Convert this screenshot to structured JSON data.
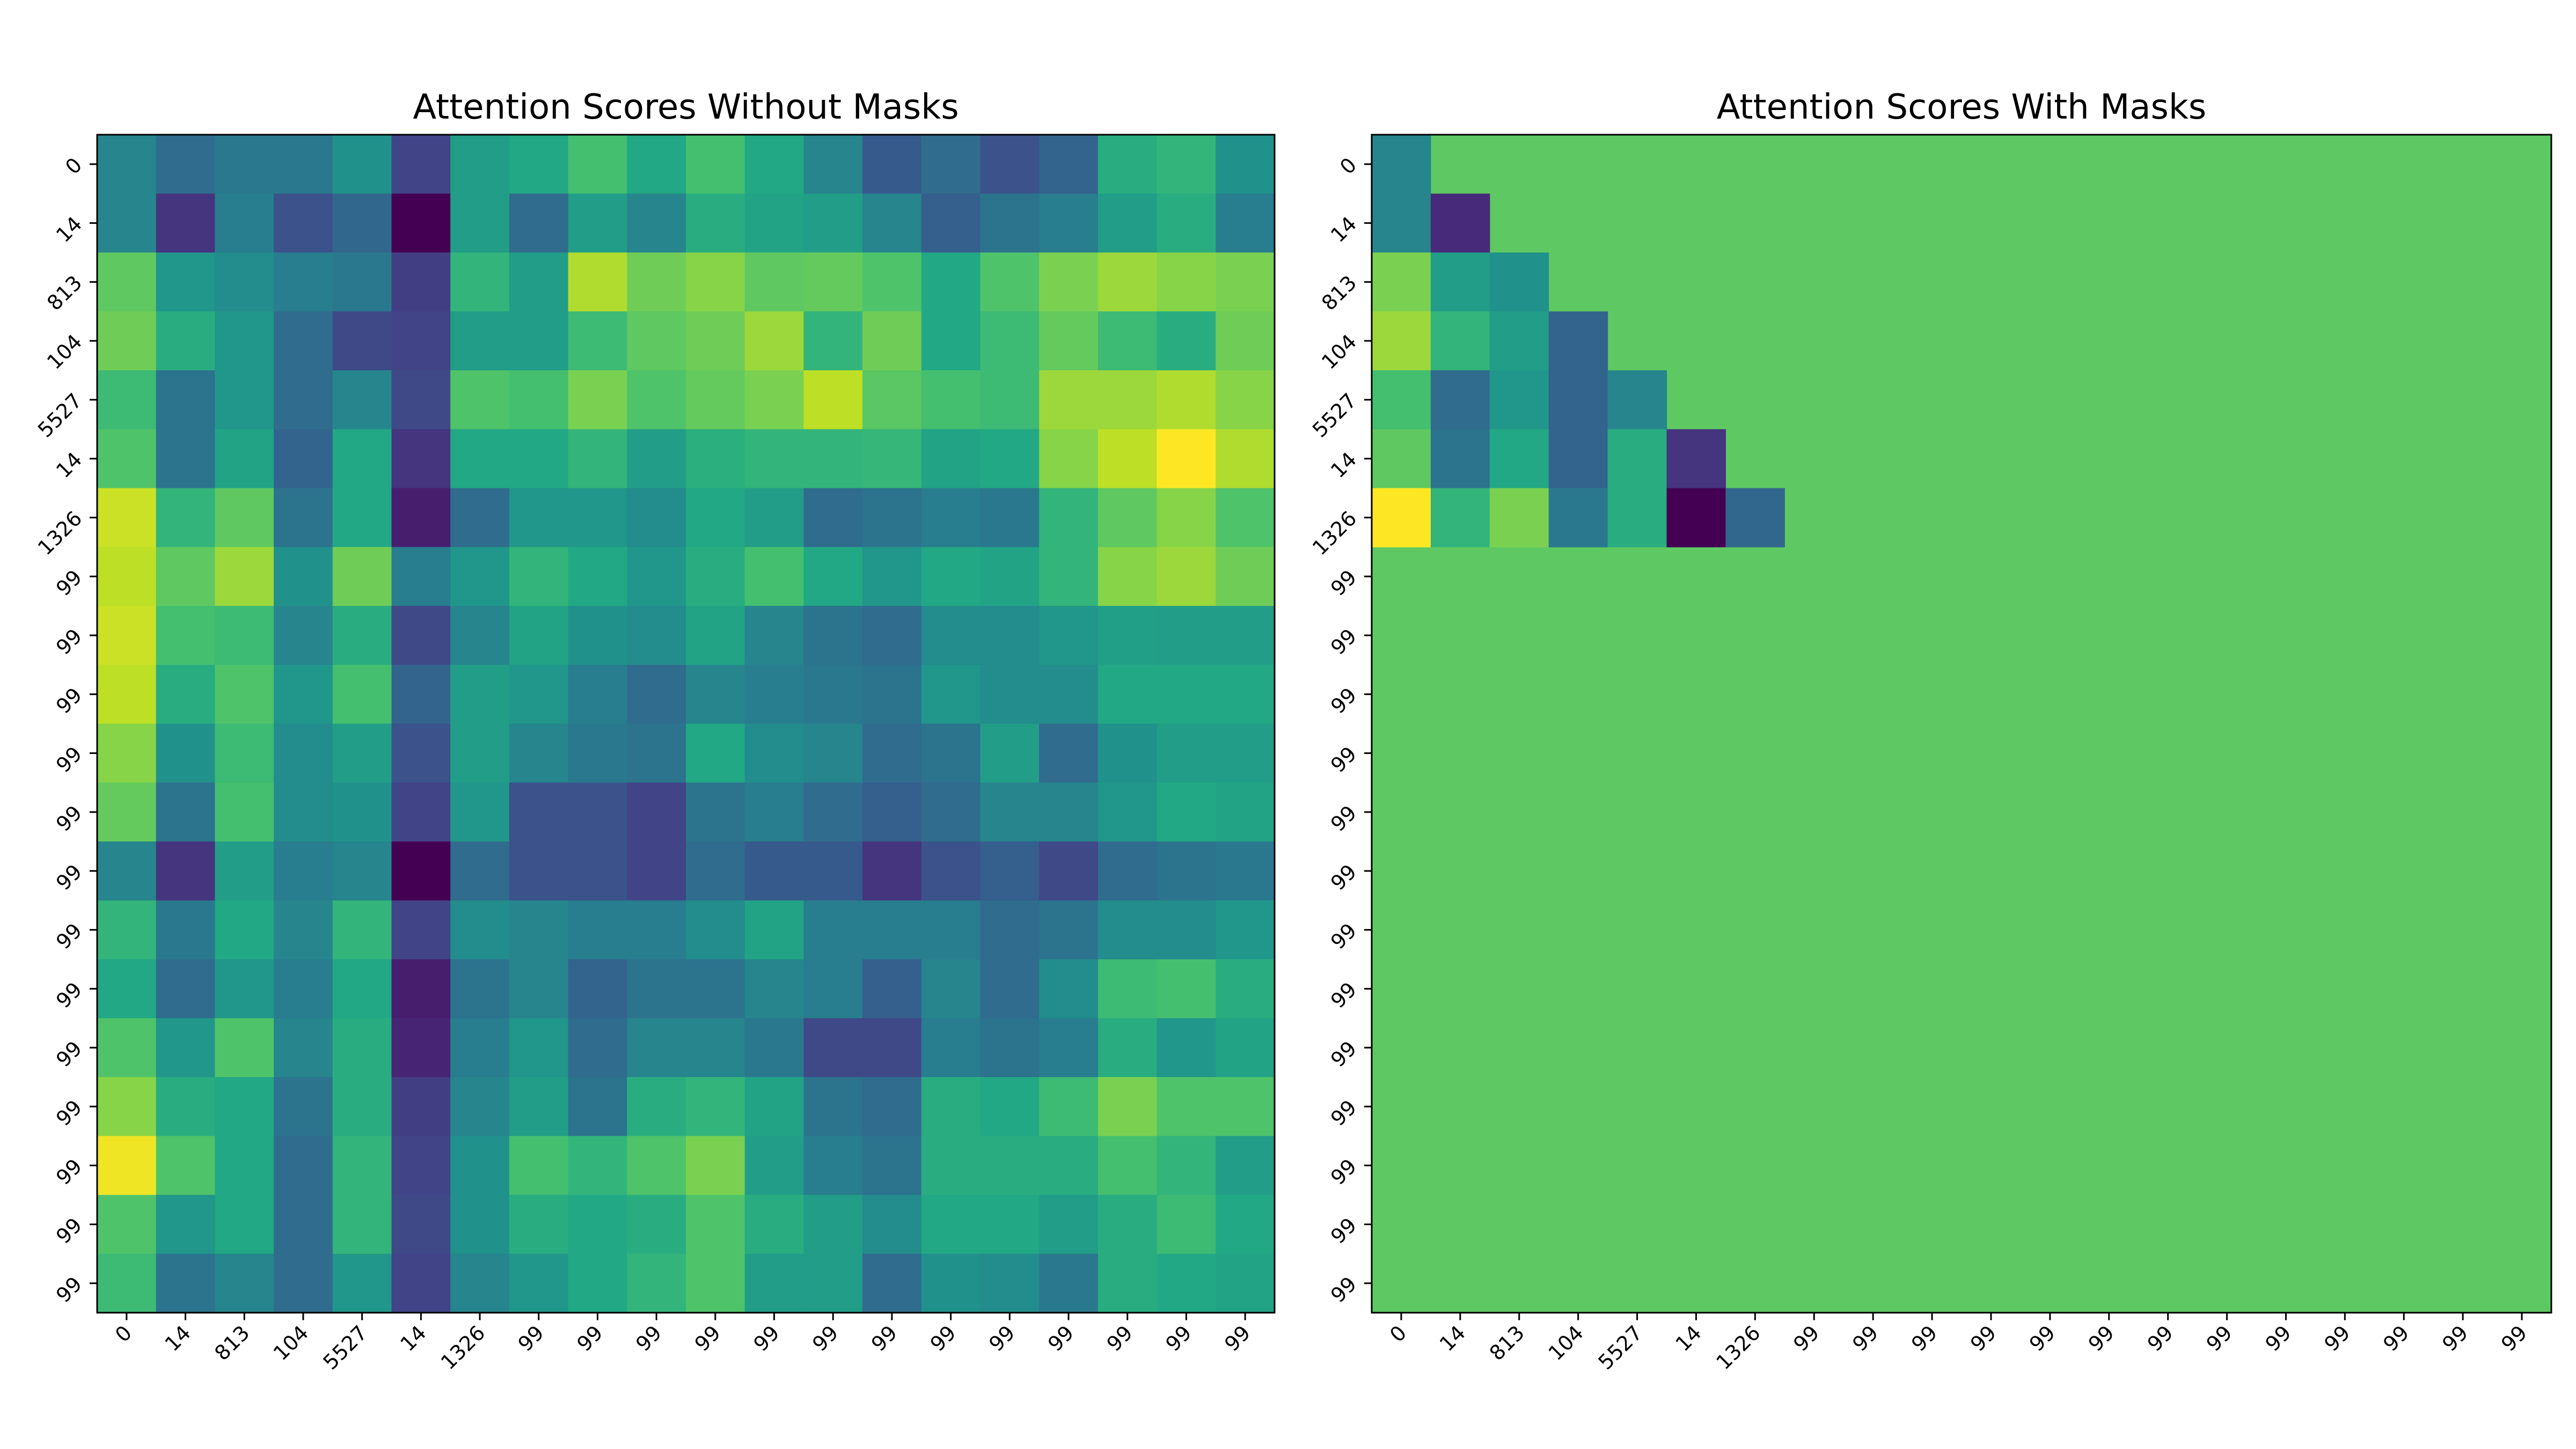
{
  "chart_data": [
    {
      "type": "heatmap",
      "title": "Attention Scores Without Masks",
      "colormap": "viridis",
      "categories": [
        "0",
        "14",
        "813",
        "104",
        "5527",
        "14",
        "1326",
        "99",
        "99",
        "99",
        "99",
        "99",
        "99",
        "99",
        "99",
        "99",
        "99",
        "99",
        "99",
        "99"
      ],
      "values": [
        [
          0.45,
          0.35,
          0.4,
          0.4,
          0.5,
          0.2,
          0.55,
          0.6,
          0.7,
          0.6,
          0.7,
          0.6,
          0.45,
          0.28,
          0.35,
          0.25,
          0.32,
          0.62,
          0.65,
          0.5
        ],
        [
          0.45,
          0.15,
          0.42,
          0.25,
          0.33,
          0.0,
          0.55,
          0.35,
          0.55,
          0.45,
          0.62,
          0.58,
          0.55,
          0.45,
          0.3,
          0.38,
          0.42,
          0.55,
          0.62,
          0.42
        ],
        [
          0.75,
          0.52,
          0.48,
          0.42,
          0.4,
          0.18,
          0.65,
          0.55,
          0.88,
          0.78,
          0.82,
          0.75,
          0.76,
          0.72,
          0.6,
          0.72,
          0.8,
          0.85,
          0.82,
          0.8
        ],
        [
          0.78,
          0.62,
          0.52,
          0.35,
          0.22,
          0.2,
          0.55,
          0.55,
          0.68,
          0.75,
          0.78,
          0.85,
          0.65,
          0.78,
          0.6,
          0.68,
          0.76,
          0.68,
          0.62,
          0.78
        ],
        [
          0.68,
          0.38,
          0.52,
          0.35,
          0.45,
          0.22,
          0.72,
          0.7,
          0.8,
          0.72,
          0.76,
          0.8,
          0.9,
          0.74,
          0.7,
          0.68,
          0.85,
          0.85,
          0.88,
          0.82
        ],
        [
          0.72,
          0.38,
          0.58,
          0.32,
          0.6,
          0.15,
          0.6,
          0.6,
          0.65,
          0.55,
          0.63,
          0.65,
          0.65,
          0.66,
          0.58,
          0.6,
          0.82,
          0.9,
          1.0,
          0.88
        ],
        [
          0.92,
          0.65,
          0.75,
          0.38,
          0.6,
          0.08,
          0.35,
          0.52,
          0.52,
          0.48,
          0.6,
          0.55,
          0.35,
          0.38,
          0.42,
          0.4,
          0.65,
          0.75,
          0.82,
          0.72
        ],
        [
          0.9,
          0.75,
          0.85,
          0.5,
          0.78,
          0.42,
          0.52,
          0.65,
          0.6,
          0.52,
          0.62,
          0.7,
          0.6,
          0.52,
          0.6,
          0.58,
          0.65,
          0.82,
          0.85,
          0.78
        ],
        [
          0.92,
          0.7,
          0.68,
          0.45,
          0.62,
          0.22,
          0.45,
          0.58,
          0.5,
          0.48,
          0.58,
          0.45,
          0.38,
          0.35,
          0.48,
          0.48,
          0.52,
          0.56,
          0.55,
          0.55
        ],
        [
          0.9,
          0.62,
          0.72,
          0.52,
          0.7,
          0.32,
          0.55,
          0.52,
          0.42,
          0.35,
          0.45,
          0.42,
          0.4,
          0.38,
          0.52,
          0.48,
          0.48,
          0.6,
          0.6,
          0.6
        ],
        [
          0.82,
          0.5,
          0.68,
          0.48,
          0.55,
          0.25,
          0.55,
          0.45,
          0.4,
          0.38,
          0.6,
          0.48,
          0.45,
          0.35,
          0.38,
          0.55,
          0.35,
          0.5,
          0.55,
          0.55
        ],
        [
          0.76,
          0.38,
          0.7,
          0.48,
          0.5,
          0.2,
          0.52,
          0.25,
          0.25,
          0.2,
          0.38,
          0.42,
          0.35,
          0.3,
          0.35,
          0.45,
          0.45,
          0.52,
          0.6,
          0.58
        ],
        [
          0.45,
          0.15,
          0.55,
          0.42,
          0.45,
          0.0,
          0.35,
          0.25,
          0.25,
          0.2,
          0.35,
          0.28,
          0.28,
          0.15,
          0.25,
          0.3,
          0.22,
          0.35,
          0.38,
          0.4
        ],
        [
          0.65,
          0.4,
          0.6,
          0.45,
          0.65,
          0.2,
          0.48,
          0.45,
          0.42,
          0.42,
          0.48,
          0.58,
          0.42,
          0.42,
          0.42,
          0.35,
          0.38,
          0.48,
          0.48,
          0.52
        ],
        [
          0.6,
          0.35,
          0.52,
          0.42,
          0.6,
          0.08,
          0.38,
          0.45,
          0.32,
          0.38,
          0.38,
          0.45,
          0.42,
          0.3,
          0.45,
          0.35,
          0.48,
          0.68,
          0.7,
          0.62
        ],
        [
          0.72,
          0.52,
          0.72,
          0.45,
          0.62,
          0.1,
          0.42,
          0.52,
          0.35,
          0.45,
          0.45,
          0.4,
          0.22,
          0.22,
          0.42,
          0.38,
          0.42,
          0.62,
          0.52,
          0.58
        ],
        [
          0.82,
          0.62,
          0.6,
          0.38,
          0.62,
          0.18,
          0.45,
          0.55,
          0.38,
          0.62,
          0.65,
          0.58,
          0.38,
          0.35,
          0.62,
          0.6,
          0.68,
          0.8,
          0.72,
          0.72
        ],
        [
          0.98,
          0.72,
          0.6,
          0.35,
          0.65,
          0.2,
          0.5,
          0.7,
          0.65,
          0.72,
          0.8,
          0.55,
          0.42,
          0.38,
          0.62,
          0.62,
          0.62,
          0.7,
          0.65,
          0.55
        ],
        [
          0.72,
          0.52,
          0.6,
          0.35,
          0.65,
          0.22,
          0.5,
          0.62,
          0.6,
          0.62,
          0.72,
          0.62,
          0.55,
          0.48,
          0.6,
          0.6,
          0.55,
          0.62,
          0.68,
          0.6
        ],
        [
          0.68,
          0.38,
          0.45,
          0.35,
          0.52,
          0.2,
          0.45,
          0.52,
          0.6,
          0.65,
          0.72,
          0.55,
          0.55,
          0.35,
          0.5,
          0.48,
          0.4,
          0.62,
          0.6,
          0.58
        ]
      ]
    },
    {
      "type": "heatmap",
      "title": "Attention Scores With Masks",
      "colormap": "viridis",
      "mask_color": "#5ec962",
      "categories": [
        "0",
        "14",
        "813",
        "104",
        "5527",
        "14",
        "1326",
        "99",
        "99",
        "99",
        "99",
        "99",
        "99",
        "99",
        "99",
        "99",
        "99",
        "99",
        "99",
        "99"
      ],
      "values": [
        [
          0.45,
          null,
          null,
          null,
          null,
          null,
          null,
          null,
          null,
          null,
          null,
          null,
          null,
          null,
          null,
          null,
          null,
          null,
          null,
          null
        ],
        [
          0.45,
          0.12,
          null,
          null,
          null,
          null,
          null,
          null,
          null,
          null,
          null,
          null,
          null,
          null,
          null,
          null,
          null,
          null,
          null,
          null
        ],
        [
          0.8,
          0.55,
          0.5,
          null,
          null,
          null,
          null,
          null,
          null,
          null,
          null,
          null,
          null,
          null,
          null,
          null,
          null,
          null,
          null,
          null
        ],
        [
          0.85,
          0.65,
          0.55,
          0.32,
          null,
          null,
          null,
          null,
          null,
          null,
          null,
          null,
          null,
          null,
          null,
          null,
          null,
          null,
          null,
          null
        ],
        [
          0.7,
          0.35,
          0.52,
          0.32,
          0.45,
          null,
          null,
          null,
          null,
          null,
          null,
          null,
          null,
          null,
          null,
          null,
          null,
          null,
          null,
          null
        ],
        [
          0.75,
          0.38,
          0.6,
          0.32,
          0.62,
          0.15,
          null,
          null,
          null,
          null,
          null,
          null,
          null,
          null,
          null,
          null,
          null,
          null,
          null,
          null
        ],
        [
          1.0,
          0.65,
          0.8,
          0.4,
          0.62,
          0.0,
          0.33,
          null,
          null,
          null,
          null,
          null,
          null,
          null,
          null,
          null,
          null,
          null,
          null,
          null
        ],
        [
          null,
          null,
          null,
          null,
          null,
          null,
          null,
          null,
          null,
          null,
          null,
          null,
          null,
          null,
          null,
          null,
          null,
          null,
          null,
          null
        ],
        [
          null,
          null,
          null,
          null,
          null,
          null,
          null,
          null,
          null,
          null,
          null,
          null,
          null,
          null,
          null,
          null,
          null,
          null,
          null,
          null
        ],
        [
          null,
          null,
          null,
          null,
          null,
          null,
          null,
          null,
          null,
          null,
          null,
          null,
          null,
          null,
          null,
          null,
          null,
          null,
          null,
          null
        ],
        [
          null,
          null,
          null,
          null,
          null,
          null,
          null,
          null,
          null,
          null,
          null,
          null,
          null,
          null,
          null,
          null,
          null,
          null,
          null,
          null
        ],
        [
          null,
          null,
          null,
          null,
          null,
          null,
          null,
          null,
          null,
          null,
          null,
          null,
          null,
          null,
          null,
          null,
          null,
          null,
          null,
          null
        ],
        [
          null,
          null,
          null,
          null,
          null,
          null,
          null,
          null,
          null,
          null,
          null,
          null,
          null,
          null,
          null,
          null,
          null,
          null,
          null,
          null
        ],
        [
          null,
          null,
          null,
          null,
          null,
          null,
          null,
          null,
          null,
          null,
          null,
          null,
          null,
          null,
          null,
          null,
          null,
          null,
          null,
          null
        ],
        [
          null,
          null,
          null,
          null,
          null,
          null,
          null,
          null,
          null,
          null,
          null,
          null,
          null,
          null,
          null,
          null,
          null,
          null,
          null,
          null
        ],
        [
          null,
          null,
          null,
          null,
          null,
          null,
          null,
          null,
          null,
          null,
          null,
          null,
          null,
          null,
          null,
          null,
          null,
          null,
          null,
          null
        ],
        [
          null,
          null,
          null,
          null,
          null,
          null,
          null,
          null,
          null,
          null,
          null,
          null,
          null,
          null,
          null,
          null,
          null,
          null,
          null,
          null
        ],
        [
          null,
          null,
          null,
          null,
          null,
          null,
          null,
          null,
          null,
          null,
          null,
          null,
          null,
          null,
          null,
          null,
          null,
          null,
          null,
          null
        ],
        [
          null,
          null,
          null,
          null,
          null,
          null,
          null,
          null,
          null,
          null,
          null,
          null,
          null,
          null,
          null,
          null,
          null,
          null,
          null,
          null
        ],
        [
          null,
          null,
          null,
          null,
          null,
          null,
          null,
          null,
          null,
          null,
          null,
          null,
          null,
          null,
          null,
          null,
          null,
          null,
          null,
          null
        ]
      ]
    }
  ]
}
